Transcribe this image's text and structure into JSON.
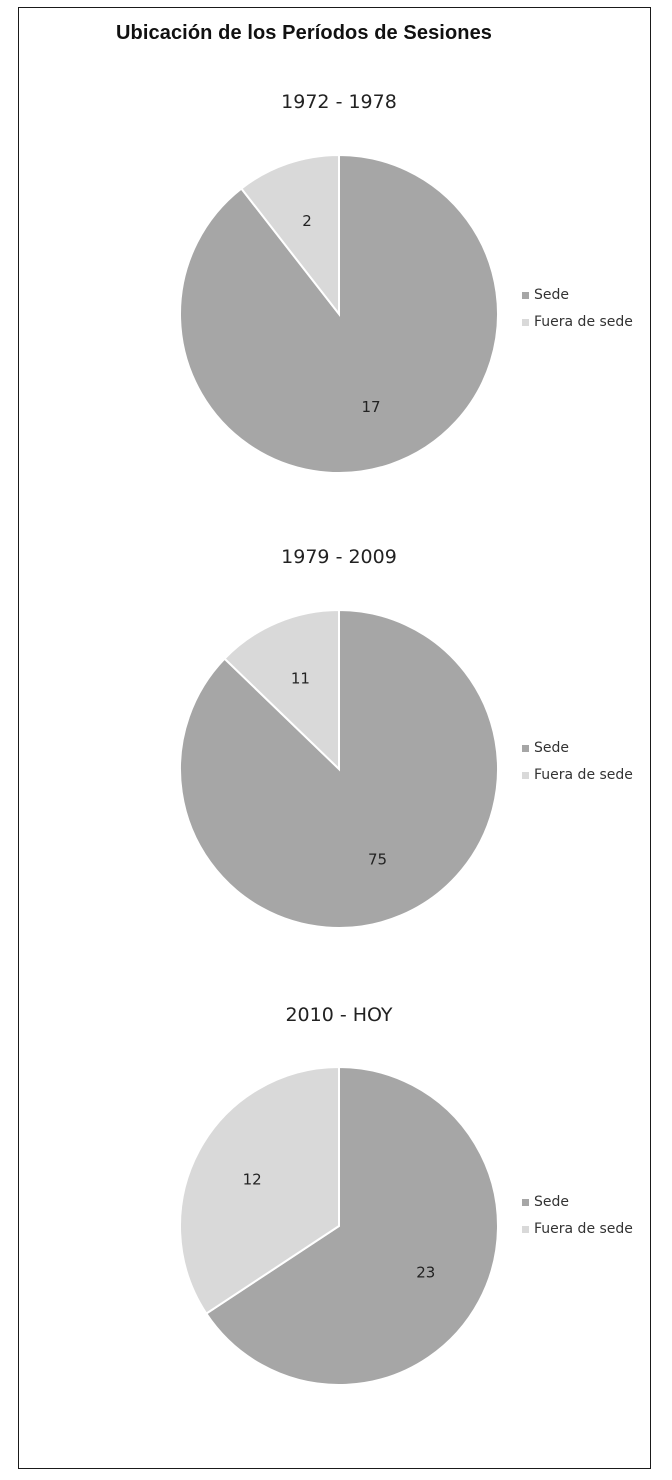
{
  "chart_title": "Ubicación de los Períodos de Sesiones",
  "legend": {
    "items": [
      {
        "label": "Sede",
        "color": "#a6a6a6"
      },
      {
        "label": "Fuera de sede",
        "color": "#d9d9d9"
      }
    ]
  },
  "chart_data": [
    {
      "type": "pie",
      "title": "1972 - 1978",
      "categories": [
        "Sede",
        "Fuera de sede"
      ],
      "values": [
        17,
        2
      ],
      "colors": [
        "#a6a6a6",
        "#d9d9d9"
      ],
      "legend_position": "right"
    },
    {
      "type": "pie",
      "title": "1979 - 2009",
      "categories": [
        "Sede",
        "Fuera de sede"
      ],
      "values": [
        75,
        11
      ],
      "colors": [
        "#a6a6a6",
        "#d9d9d9"
      ],
      "legend_position": "right"
    },
    {
      "type": "pie",
      "title": "2010 - HOY",
      "categories": [
        "Sede",
        "Fuera de sede"
      ],
      "values": [
        23,
        12
      ],
      "colors": [
        "#a6a6a6",
        "#d9d9d9"
      ],
      "legend_position": "right"
    }
  ]
}
